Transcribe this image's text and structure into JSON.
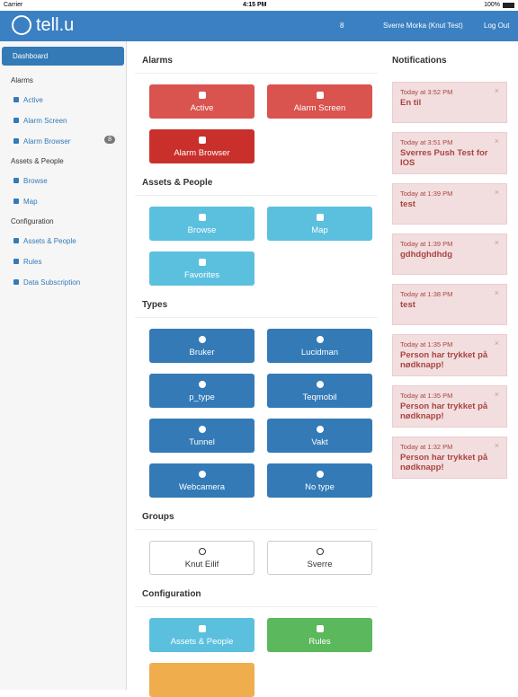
{
  "status": {
    "carrier": "Carrier",
    "time": "4:15 PM",
    "battery": "100%"
  },
  "navbar": {
    "brand": "tell.u",
    "alarm_count": "8",
    "user": "Sverre Morka (Knut Test)",
    "logout": "Log Out"
  },
  "sidebar": {
    "active": "Dashboard",
    "groups": [
      {
        "title": "Alarms",
        "items": [
          {
            "label": "Active"
          },
          {
            "label": "Alarm Screen"
          },
          {
            "label": "Alarm Browser",
            "badge": "8"
          }
        ]
      },
      {
        "title": "Assets & People",
        "items": [
          {
            "label": "Browse"
          },
          {
            "label": "Map"
          }
        ]
      },
      {
        "title": "Configuration",
        "items": [
          {
            "label": "Assets & People"
          },
          {
            "label": "Rules"
          },
          {
            "label": "Data Subscription"
          }
        ]
      }
    ]
  },
  "main": {
    "sections": [
      {
        "title": "Alarms",
        "buttons": [
          {
            "label": "Active"
          },
          {
            "label": "Alarm Screen"
          },
          {
            "label": "Alarm Browser"
          }
        ]
      },
      {
        "title": "Assets & People",
        "buttons": [
          {
            "label": "Browse"
          },
          {
            "label": "Map"
          },
          {
            "label": "Favorites"
          }
        ]
      },
      {
        "title": "Types",
        "buttons": [
          {
            "label": "Bruker"
          },
          {
            "label": "Lucidman"
          },
          {
            "label": "p_type"
          },
          {
            "label": "Teqmobil"
          },
          {
            "label": "Tunnel"
          },
          {
            "label": "Vakt"
          },
          {
            "label": "Webcamera"
          },
          {
            "label": "No type"
          }
        ]
      },
      {
        "title": "Groups",
        "buttons": [
          {
            "label": "Knut Eilif"
          },
          {
            "label": "Sverre"
          }
        ]
      },
      {
        "title": "Configuration",
        "buttons": [
          {
            "label": "Assets & People"
          },
          {
            "label": "Rules"
          }
        ]
      }
    ]
  },
  "notifications": {
    "title": "Notifications",
    "items": [
      {
        "time": "Today at 3:52 PM",
        "text": "En til"
      },
      {
        "time": "Today at 3:51 PM",
        "text": "Sverres Push Test for IOS"
      },
      {
        "time": "Today at 1:39 PM",
        "text": "test"
      },
      {
        "time": "Today at 1:39 PM",
        "text": "gdhdghdhdg"
      },
      {
        "time": "Today at 1:38 PM",
        "text": "test"
      },
      {
        "time": "Today at 1:35 PM",
        "text": "Person har trykket på nødknapp!"
      },
      {
        "time": "Today at 1:35 PM",
        "text": "Person har trykket på nødknapp!"
      },
      {
        "time": "Today at 1:32 PM",
        "text": "Person har trykket på nødknapp!"
      }
    ]
  }
}
